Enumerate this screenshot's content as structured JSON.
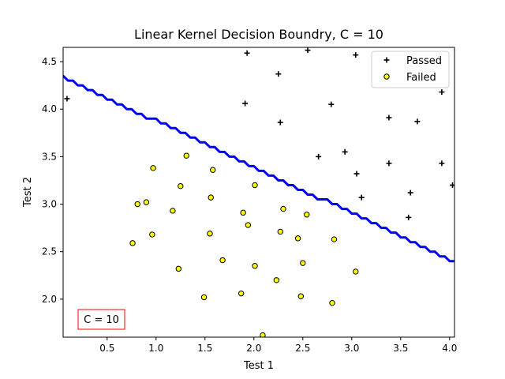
{
  "chart_data": {
    "type": "scatter",
    "title": "Linear Kernel Decision Boundry, C = 10",
    "xlabel": "Test 1",
    "ylabel": "Test 2",
    "xlim": [
      0.05,
      4.05
    ],
    "ylim": [
      1.6,
      4.65
    ],
    "xticks": [
      "0.5",
      "1.0",
      "1.5",
      "2.0",
      "2.5",
      "3.0",
      "3.5",
      "4.0"
    ],
    "yticks": [
      "2.0",
      "2.5",
      "3.0",
      "3.5",
      "4.0",
      "4.5"
    ],
    "legend_position": "top-right",
    "annotation": "C = 10",
    "series": [
      {
        "name": "Passed",
        "marker": "plus",
        "color": "#000000",
        "points": [
          [
            0.09,
            4.11
          ],
          [
            1.93,
            4.59
          ],
          [
            2.25,
            4.37
          ],
          [
            2.55,
            4.62
          ],
          [
            3.04,
            4.57
          ],
          [
            3.25,
            4.29
          ],
          [
            1.91,
            4.06
          ],
          [
            2.79,
            4.05
          ],
          [
            3.92,
            4.18
          ],
          [
            2.27,
            3.86
          ],
          [
            3.38,
            3.91
          ],
          [
            3.67,
            3.87
          ],
          [
            2.66,
            3.5
          ],
          [
            2.93,
            3.55
          ],
          [
            3.05,
            3.32
          ],
          [
            3.38,
            3.43
          ],
          [
            3.92,
            3.43
          ],
          [
            4.03,
            3.2
          ],
          [
            3.1,
            3.07
          ],
          [
            3.6,
            3.12
          ],
          [
            3.58,
            2.86
          ]
        ]
      },
      {
        "name": "Failed",
        "marker": "circle",
        "color": "#ffff00",
        "points": [
          [
            1.31,
            3.51
          ],
          [
            0.97,
            3.38
          ],
          [
            1.58,
            3.36
          ],
          [
            1.25,
            3.19
          ],
          [
            2.01,
            3.2
          ],
          [
            0.9,
            3.02
          ],
          [
            0.81,
            3.0
          ],
          [
            1.56,
            3.07
          ],
          [
            1.17,
            2.93
          ],
          [
            2.3,
            2.95
          ],
          [
            1.89,
            2.91
          ],
          [
            2.54,
            2.89
          ],
          [
            1.94,
            2.78
          ],
          [
            2.27,
            2.71
          ],
          [
            2.45,
            2.64
          ],
          [
            2.82,
            2.63
          ],
          [
            0.96,
            2.68
          ],
          [
            1.55,
            2.69
          ],
          [
            0.76,
            2.59
          ],
          [
            1.68,
            2.41
          ],
          [
            2.01,
            2.35
          ],
          [
            2.5,
            2.38
          ],
          [
            1.23,
            2.32
          ],
          [
            3.04,
            2.29
          ],
          [
            2.23,
            2.2
          ],
          [
            1.49,
            2.02
          ],
          [
            1.87,
            2.06
          ],
          [
            2.48,
            2.03
          ],
          [
            2.8,
            1.96
          ],
          [
            2.09,
            1.62
          ]
        ]
      }
    ],
    "decision_boundary": {
      "color": "#0000ff",
      "slope": -0.485,
      "intercept": 4.36
    }
  }
}
